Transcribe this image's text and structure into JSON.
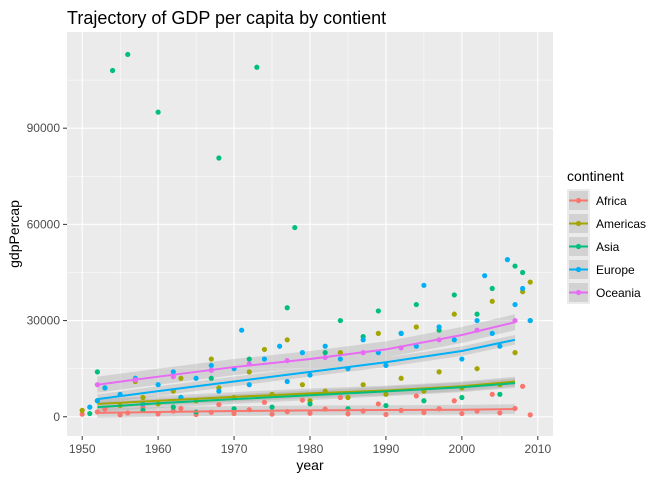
{
  "chart_data": {
    "type": "scatter",
    "title": "Trajectory of GDP per capita by contient",
    "xlabel": "year",
    "ylabel": "gdpPercap",
    "xlim": [
      1948,
      2012
    ],
    "ylim": [
      -6000,
      120000
    ],
    "x_ticks": [
      1950,
      1960,
      1970,
      1980,
      1990,
      2000,
      2010
    ],
    "y_ticks": [
      0,
      30000,
      60000,
      90000
    ],
    "y_tick_labels": [
      "0",
      "30000",
      "60000",
      "90000"
    ],
    "grid": true,
    "legend": {
      "title": "continent",
      "placement": "right",
      "entries": [
        "Africa",
        "Americas",
        "Asia",
        "Europe",
        "Oceania"
      ]
    },
    "series": [
      {
        "name": "Africa",
        "color": "#F8766D",
        "points": [
          [
            1950,
            800
          ],
          [
            1952,
            1500
          ],
          [
            1953,
            2400
          ],
          [
            1955,
            600
          ],
          [
            1956,
            1200
          ],
          [
            1958,
            3000
          ],
          [
            1960,
            900
          ],
          [
            1962,
            1800
          ],
          [
            1963,
            2600
          ],
          [
            1965,
            700
          ],
          [
            1967,
            1400
          ],
          [
            1968,
            3800
          ],
          [
            1970,
            1000
          ],
          [
            1972,
            2200
          ],
          [
            1974,
            4500
          ],
          [
            1975,
            800
          ],
          [
            1977,
            1600
          ],
          [
            1979,
            5200
          ],
          [
            1980,
            1100
          ],
          [
            1982,
            2400
          ],
          [
            1984,
            6000
          ],
          [
            1985,
            900
          ],
          [
            1987,
            1800
          ],
          [
            1989,
            4000
          ],
          [
            1990,
            700
          ],
          [
            1992,
            2000
          ],
          [
            1994,
            6500
          ],
          [
            1995,
            1300
          ],
          [
            1997,
            2500
          ],
          [
            1999,
            5000
          ],
          [
            2000,
            1000
          ],
          [
            2002,
            1800
          ],
          [
            2004,
            7000
          ],
          [
            2005,
            1200
          ],
          [
            2007,
            2600
          ],
          [
            2008,
            9500
          ],
          [
            2009,
            600
          ]
        ],
        "smooth": [
          [
            1952,
            1200
          ],
          [
            1960,
            1500
          ],
          [
            1970,
            1800
          ],
          [
            1980,
            2000
          ],
          [
            1990,
            2100
          ],
          [
            2000,
            2200
          ],
          [
            2007,
            2400
          ]
        ]
      },
      {
        "name": "Americas",
        "color": "#A3A500",
        "points": [
          [
            1950,
            2000
          ],
          [
            1952,
            5000
          ],
          [
            1953,
            9000
          ],
          [
            1955,
            3500
          ],
          [
            1957,
            11000
          ],
          [
            1958,
            6000
          ],
          [
            1960,
            4000
          ],
          [
            1962,
            8000
          ],
          [
            1963,
            12000
          ],
          [
            1965,
            5000
          ],
          [
            1967,
            18000
          ],
          [
            1968,
            9000
          ],
          [
            1970,
            6000
          ],
          [
            1972,
            14000
          ],
          [
            1974,
            21000
          ],
          [
            1975,
            7000
          ],
          [
            1977,
            24000
          ],
          [
            1979,
            10000
          ],
          [
            1980,
            5000
          ],
          [
            1982,
            8000
          ],
          [
            1984,
            20000
          ],
          [
            1985,
            6000
          ],
          [
            1987,
            10000
          ],
          [
            1989,
            26000
          ],
          [
            1990,
            7000
          ],
          [
            1992,
            12000
          ],
          [
            1994,
            28000
          ],
          [
            1995,
            8000
          ],
          [
            1997,
            14000
          ],
          [
            1999,
            32000
          ],
          [
            2000,
            9000
          ],
          [
            2002,
            15000
          ],
          [
            2004,
            36000
          ],
          [
            2005,
            10000
          ],
          [
            2007,
            20000
          ],
          [
            2008,
            39000
          ],
          [
            2009,
            42000
          ]
        ],
        "smooth": [
          [
            1952,
            4000
          ],
          [
            1960,
            5000
          ],
          [
            1970,
            6200
          ],
          [
            1980,
            7300
          ],
          [
            1990,
            8200
          ],
          [
            2000,
            9500
          ],
          [
            2007,
            11000
          ]
        ]
      },
      {
        "name": "Asia",
        "color": "#00BF7D",
        "points": [
          [
            1951,
            1000
          ],
          [
            1952,
            14000
          ],
          [
            1954,
            108000
          ],
          [
            1956,
            113000
          ],
          [
            1958,
            2000
          ],
          [
            1960,
            95000
          ],
          [
            1962,
            3000
          ],
          [
            1963,
            6000
          ],
          [
            1965,
            1500
          ],
          [
            1967,
            12000
          ],
          [
            1968,
            80700
          ],
          [
            1970,
            2500
          ],
          [
            1972,
            18000
          ],
          [
            1973,
            109000
          ],
          [
            1975,
            3000
          ],
          [
            1977,
            34000
          ],
          [
            1978,
            59000
          ],
          [
            1980,
            4000
          ],
          [
            1982,
            20000
          ],
          [
            1984,
            30000
          ],
          [
            1985,
            2500
          ],
          [
            1987,
            25000
          ],
          [
            1989,
            33000
          ],
          [
            1990,
            3500
          ],
          [
            1992,
            26000
          ],
          [
            1994,
            35000
          ],
          [
            1995,
            5000
          ],
          [
            1997,
            27000
          ],
          [
            1999,
            38000
          ],
          [
            2000,
            6000
          ],
          [
            2002,
            32000
          ],
          [
            2004,
            40000
          ],
          [
            2005,
            7000
          ],
          [
            2007,
            47000
          ],
          [
            2008,
            45000
          ],
          [
            2009,
            30000
          ]
        ],
        "smooth": [
          [
            1952,
            3000
          ],
          [
            1960,
            4200
          ],
          [
            1970,
            5500
          ],
          [
            1980,
            6700
          ],
          [
            1990,
            7900
          ],
          [
            2000,
            9200
          ],
          [
            2007,
            10500
          ]
        ]
      },
      {
        "name": "Europe",
        "color": "#00B0F6",
        "points": [
          [
            1951,
            3000
          ],
          [
            1952,
            5000
          ],
          [
            1953,
            9000
          ],
          [
            1955,
            7000
          ],
          [
            1957,
            12000
          ],
          [
            1958,
            4000
          ],
          [
            1960,
            10000
          ],
          [
            1962,
            14000
          ],
          [
            1963,
            6000
          ],
          [
            1965,
            12000
          ],
          [
            1967,
            16000
          ],
          [
            1968,
            8000
          ],
          [
            1970,
            15000
          ],
          [
            1971,
            27000
          ],
          [
            1972,
            10000
          ],
          [
            1974,
            18000
          ],
          [
            1976,
            22000
          ],
          [
            1977,
            11000
          ],
          [
            1979,
            20000
          ],
          [
            1980,
            13000
          ],
          [
            1982,
            22000
          ],
          [
            1984,
            18000
          ],
          [
            1985,
            15000
          ],
          [
            1987,
            24000
          ],
          [
            1989,
            20000
          ],
          [
            1990,
            16000
          ],
          [
            1992,
            26000
          ],
          [
            1994,
            22000
          ],
          [
            1995,
            41000
          ],
          [
            1997,
            28000
          ],
          [
            1999,
            24000
          ],
          [
            2000,
            18000
          ],
          [
            2002,
            30000
          ],
          [
            2003,
            44000
          ],
          [
            2004,
            26000
          ],
          [
            2005,
            22000
          ],
          [
            2006,
            49000
          ],
          [
            2007,
            35000
          ],
          [
            2008,
            40000
          ],
          [
            2009,
            30000
          ]
        ],
        "smooth": [
          [
            1952,
            5500
          ],
          [
            1960,
            8000
          ],
          [
            1970,
            11000
          ],
          [
            1980,
            14000
          ],
          [
            1990,
            17000
          ],
          [
            2000,
            20500
          ],
          [
            2007,
            24000
          ]
        ]
      },
      {
        "name": "Oceania",
        "color": "#E76BF3",
        "points": [
          [
            1952,
            10000
          ],
          [
            1957,
            11500
          ],
          [
            1962,
            12500
          ],
          [
            1967,
            14500
          ],
          [
            1972,
            16500
          ],
          [
            1977,
            17500
          ],
          [
            1982,
            18500
          ],
          [
            1987,
            20000
          ],
          [
            1992,
            21500
          ],
          [
            1997,
            24000
          ],
          [
            2002,
            27000
          ],
          [
            2007,
            30000
          ]
        ],
        "smooth": [
          [
            1952,
            10000
          ],
          [
            1960,
            12500
          ],
          [
            1970,
            15500
          ],
          [
            1980,
            18000
          ],
          [
            1990,
            21000
          ],
          [
            2000,
            25500
          ],
          [
            2007,
            29500
          ]
        ]
      }
    ]
  }
}
